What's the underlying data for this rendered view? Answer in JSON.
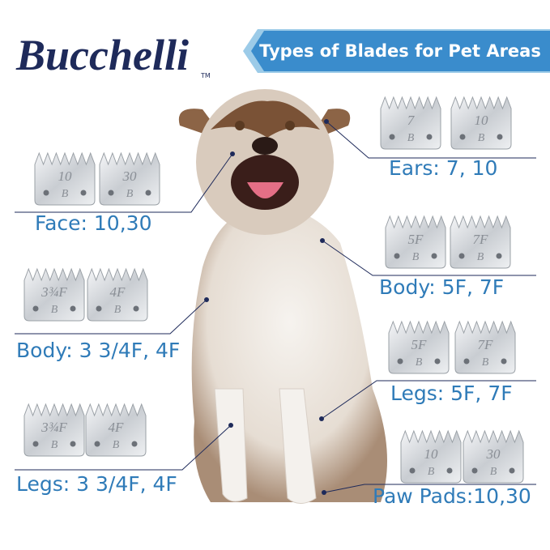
{
  "brand": {
    "name": "Bucchelli",
    "trademark": "TM"
  },
  "header": {
    "title": "Types of Blades for Pet Areas"
  },
  "blade_mark": "B",
  "areas": [
    {
      "label": "Ears: 7, 10",
      "blades": [
        "7",
        "10"
      ]
    },
    {
      "label": "Face: 10,30",
      "blades": [
        "10",
        "30"
      ]
    },
    {
      "label": "Body: 5F, 7F",
      "blades": [
        "5F",
        "7F"
      ]
    },
    {
      "label": "Body: 3 3/4F, 4F",
      "blades": [
        "3¾F",
        "4F"
      ]
    },
    {
      "label": "Legs: 5F, 7F",
      "blades": [
        "5F",
        "7F"
      ]
    },
    {
      "label": "Legs: 3 3/4F, 4F",
      "blades": [
        "3¾F",
        "4F"
      ]
    },
    {
      "label": "Paw Pads:10,30",
      "blades": [
        "10",
        "30"
      ]
    }
  ]
}
